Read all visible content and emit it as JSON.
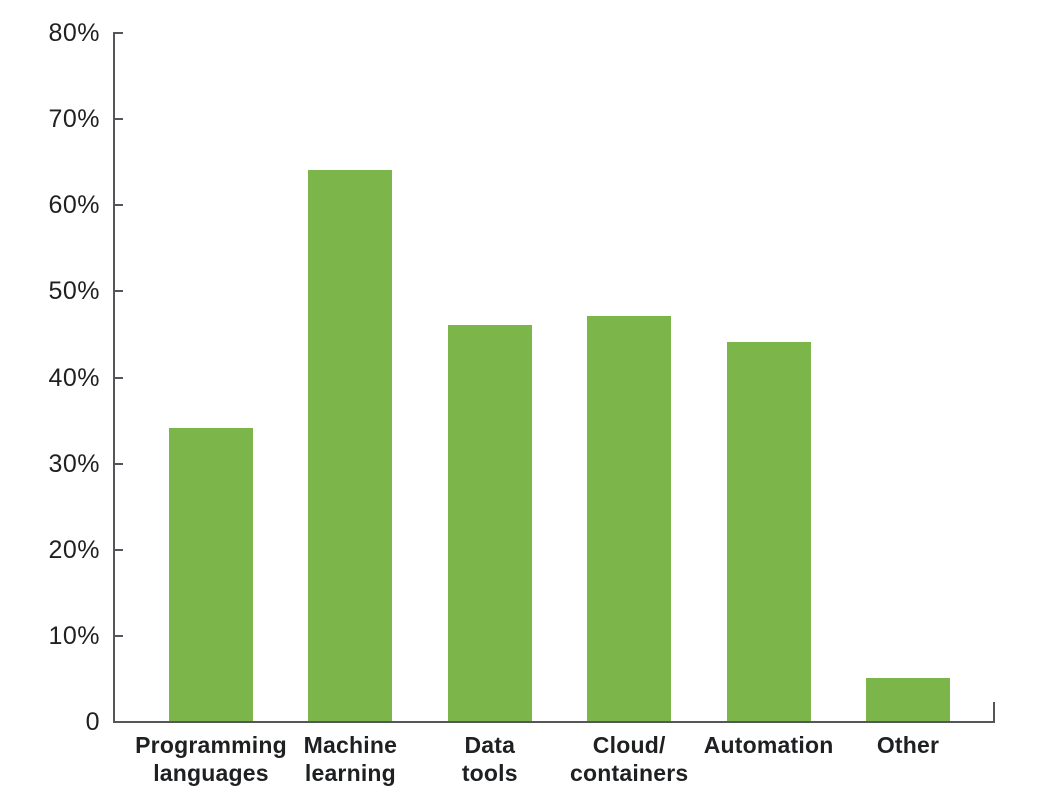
{
  "chart_data": {
    "type": "bar",
    "title": "",
    "xlabel": "",
    "ylabel": "",
    "categories": [
      [
        "Programming",
        "languages"
      ],
      [
        "Machine",
        "learning"
      ],
      [
        "Data",
        "tools"
      ],
      [
        "Cloud/",
        "containers"
      ],
      [
        "Automation"
      ],
      [
        "Other"
      ]
    ],
    "values": [
      34,
      64,
      46,
      47,
      44,
      5
    ],
    "ylim": [
      0,
      80
    ],
    "ytick_step": 10,
    "ytick_labels": [
      "0",
      "10%",
      "20%",
      "30%",
      "40%",
      "50%",
      "60%",
      "70%",
      "80%"
    ],
    "grid": false,
    "legend": "none",
    "colors": {
      "bar": "#7cb64a",
      "axis": "#55565a",
      "text": "#1f2022"
    }
  }
}
